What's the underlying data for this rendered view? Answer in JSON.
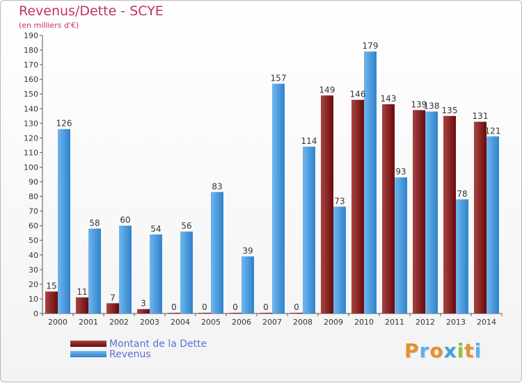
{
  "header": {
    "title": "Revenus/Dette - SCYE",
    "subtitle": "(en milliers d'€)"
  },
  "logo": {
    "letters": [
      "P",
      "r",
      "o",
      "x",
      "i",
      "t",
      "i"
    ],
    "colors": [
      "#e8902a",
      "#5ab3e8",
      "#e8902a",
      "#3fa0e0",
      "#8cc63f",
      "#e8902a",
      "#5ab3e8"
    ]
  },
  "colors": {
    "debt": "#7a1010",
    "debt_light": "#a84444",
    "revenue": "#3d8fd6",
    "revenue_light": "#6fb6ee"
  },
  "chart_data": {
    "type": "bar",
    "title": "Revenus/Dette - SCYE",
    "ylabel": "(en milliers d'€)",
    "xlabel": "",
    "ylim": [
      0,
      190
    ],
    "ytick_step": 10,
    "grid": false,
    "legend_position": "bottom-left",
    "categories": [
      "2000",
      "2001",
      "2002",
      "2003",
      "2004",
      "2005",
      "2006",
      "2007",
      "2008",
      "2009",
      "2010",
      "2011",
      "2012",
      "2013",
      "2014"
    ],
    "series": [
      {
        "name": "Montant de la Dette",
        "values": [
          15,
          11,
          7,
          3,
          0,
          0,
          0,
          0,
          0,
          149,
          146,
          143,
          139,
          135,
          131
        ]
      },
      {
        "name": "Revenus",
        "values": [
          126,
          58,
          60,
          54,
          56,
          83,
          39,
          157,
          114,
          73,
          179,
          93,
          138,
          78,
          121
        ]
      }
    ]
  }
}
